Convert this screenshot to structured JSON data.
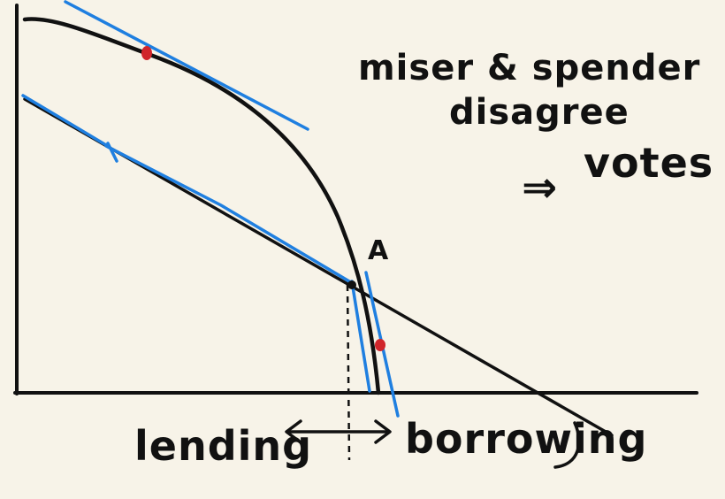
{
  "annotations": {
    "line1": "miser & spender",
    "line2": "disagree",
    "line3": "votes",
    "implies_symbol": "⇒",
    "point_label": "A",
    "left_label": "lending",
    "right_label": "borrowing"
  },
  "colors": {
    "background": "#f7f3e8",
    "ink": "#111111",
    "tangent": "#1f7fe0",
    "dot": "#d0252b"
  }
}
